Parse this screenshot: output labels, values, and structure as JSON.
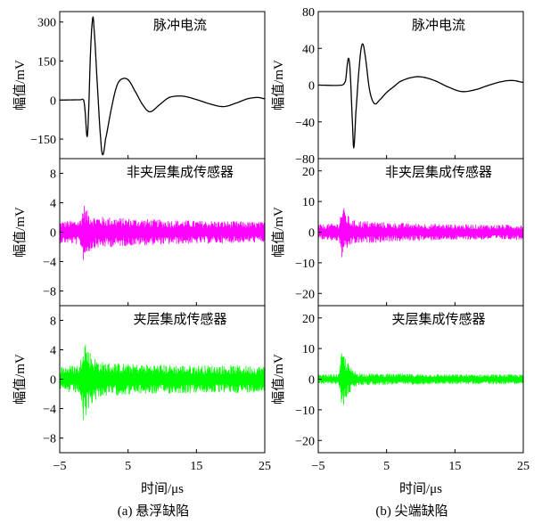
{
  "colors": {
    "pulse": "#000000",
    "non_sandwich": "#ff00ff",
    "sandwich": "#00ff00",
    "axis": "#000000"
  },
  "chart_data": [
    {
      "column": "a",
      "caption": "(a)  悬浮缺陷",
      "xlabel": "时间/μs",
      "xlim": [
        -5,
        25
      ],
      "xticks": [
        -5,
        5,
        15,
        25
      ],
      "panels": [
        {
          "type": "line",
          "title": "脉冲电流",
          "ylabel": "幅值/mV",
          "color": "#000000",
          "ylim": [
            -225,
            340
          ],
          "yticks": [
            300,
            150,
            0,
            -150
          ],
          "points": [
            [
              -5,
              0
            ],
            [
              -2,
              1
            ],
            [
              -1.5,
              0
            ],
            [
              -1.3,
              -40
            ],
            [
              -1.0,
              -140
            ],
            [
              -0.8,
              -60
            ],
            [
              -0.5,
              180
            ],
            [
              -0.2,
              310
            ],
            [
              0,
              280
            ],
            [
              0.5,
              60
            ],
            [
              1.0,
              -150
            ],
            [
              1.3,
              -210
            ],
            [
              1.7,
              -150
            ],
            [
              2.5,
              -40
            ],
            [
              3.3,
              50
            ],
            [
              4.0,
              80
            ],
            [
              5.0,
              78
            ],
            [
              6.0,
              35
            ],
            [
              7.2,
              -20
            ],
            [
              8.2,
              -45
            ],
            [
              9.5,
              -20
            ],
            [
              11.0,
              10
            ],
            [
              13.0,
              15
            ],
            [
              15.0,
              2
            ],
            [
              17.0,
              -15
            ],
            [
              19.0,
              -25
            ],
            [
              21.0,
              -10
            ],
            [
              22.5,
              5
            ],
            [
              24.0,
              10
            ],
            [
              25.0,
              5
            ]
          ]
        },
        {
          "type": "noise",
          "title": "非夹层集成传感器",
          "ylabel": "幅值/mV",
          "color": "#ff00ff",
          "ylim": [
            -10,
            10
          ],
          "yticks": [
            8,
            4,
            0,
            -4,
            -8
          ],
          "envelope": [
            [
              -5,
              1.5
            ],
            [
              -2,
              1.7
            ],
            [
              -1.5,
              4.0
            ],
            [
              -1.0,
              3.0
            ],
            [
              0,
              2.2
            ],
            [
              5,
              1.9
            ],
            [
              10,
              1.7
            ],
            [
              15,
              1.6
            ],
            [
              20,
              1.5
            ],
            [
              25,
              1.4
            ]
          ]
        },
        {
          "type": "noise",
          "title": "夹层集成传感器",
          "ylabel": "幅值/mV",
          "color": "#00ff00",
          "ylim": [
            -10,
            10
          ],
          "yticks": [
            8,
            4,
            0,
            -4,
            -8
          ],
          "envelope": [
            [
              -5,
              1.8
            ],
            [
              -2,
              2.0
            ],
            [
              -1.5,
              7.0
            ],
            [
              -1.0,
              4.5
            ],
            [
              0,
              3.0
            ],
            [
              1,
              2.4
            ],
            [
              5,
              2.1
            ],
            [
              10,
              2.0
            ],
            [
              15,
              1.9
            ],
            [
              20,
              1.9
            ],
            [
              25,
              1.8
            ]
          ]
        }
      ]
    },
    {
      "column": "b",
      "caption": "(b)  尖端缺陷",
      "xlabel": "时间/μs",
      "xlim": [
        -5,
        25
      ],
      "xticks": [
        -5,
        5,
        15,
        25
      ],
      "panels": [
        {
          "type": "line",
          "title": "脉冲电流",
          "ylabel": "幅值/mV",
          "color": "#000000",
          "ylim": [
            -80,
            80
          ],
          "yticks": [
            80,
            40,
            0,
            -40,
            -80
          ],
          "points": [
            [
              -5,
              0
            ],
            [
              -1.5,
              0
            ],
            [
              -1.0,
              5
            ],
            [
              -0.7,
              25
            ],
            [
              -0.5,
              28
            ],
            [
              -0.3,
              10
            ],
            [
              0,
              -40
            ],
            [
              0.2,
              -68
            ],
            [
              0.5,
              -30
            ],
            [
              1.0,
              20
            ],
            [
              1.4,
              44
            ],
            [
              1.8,
              35
            ],
            [
              2.5,
              -5
            ],
            [
              3.2,
              -20
            ],
            [
              4.0,
              -16
            ],
            [
              5.0,
              -8
            ],
            [
              6.0,
              -2
            ],
            [
              7.0,
              4
            ],
            [
              8.5,
              8
            ],
            [
              10.0,
              9
            ],
            [
              12.0,
              5
            ],
            [
              14.0,
              -2
            ],
            [
              16.0,
              -7
            ],
            [
              18.0,
              -5
            ],
            [
              20.0,
              0
            ],
            [
              22.0,
              4
            ],
            [
              23.5,
              5
            ],
            [
              25.0,
              3
            ]
          ]
        },
        {
          "type": "noise",
          "title": "非夹层集成传感器",
          "ylabel": "幅值/mV",
          "color": "#ff00ff",
          "ylim": [
            -24,
            24
          ],
          "yticks": [
            20,
            10,
            0,
            -10,
            -20
          ],
          "envelope": [
            [
              -5,
              2.5
            ],
            [
              -2,
              3.0
            ],
            [
              -1.5,
              9.0
            ],
            [
              -0.5,
              5.0
            ],
            [
              0,
              4.0
            ],
            [
              5,
              3.2
            ],
            [
              10,
              2.8
            ],
            [
              15,
              2.6
            ],
            [
              20,
              2.5
            ],
            [
              25,
              2.5
            ]
          ]
        },
        {
          "type": "noise",
          "title": "夹层集成传感器",
          "ylabel": "幅值/mV",
          "color": "#00ff00",
          "ylim": [
            -24,
            24
          ],
          "yticks": [
            20,
            10,
            0,
            -10,
            -20
          ],
          "envelope": [
            [
              -5,
              1.5
            ],
            [
              -2,
              1.7
            ],
            [
              -1.5,
              10.0
            ],
            [
              -1.0,
              7.0
            ],
            [
              0,
              3.0
            ],
            [
              1,
              2.0
            ],
            [
              5,
              1.8
            ],
            [
              10,
              1.7
            ],
            [
              15,
              1.6
            ],
            [
              20,
              1.6
            ],
            [
              25,
              1.6
            ]
          ]
        }
      ]
    }
  ]
}
